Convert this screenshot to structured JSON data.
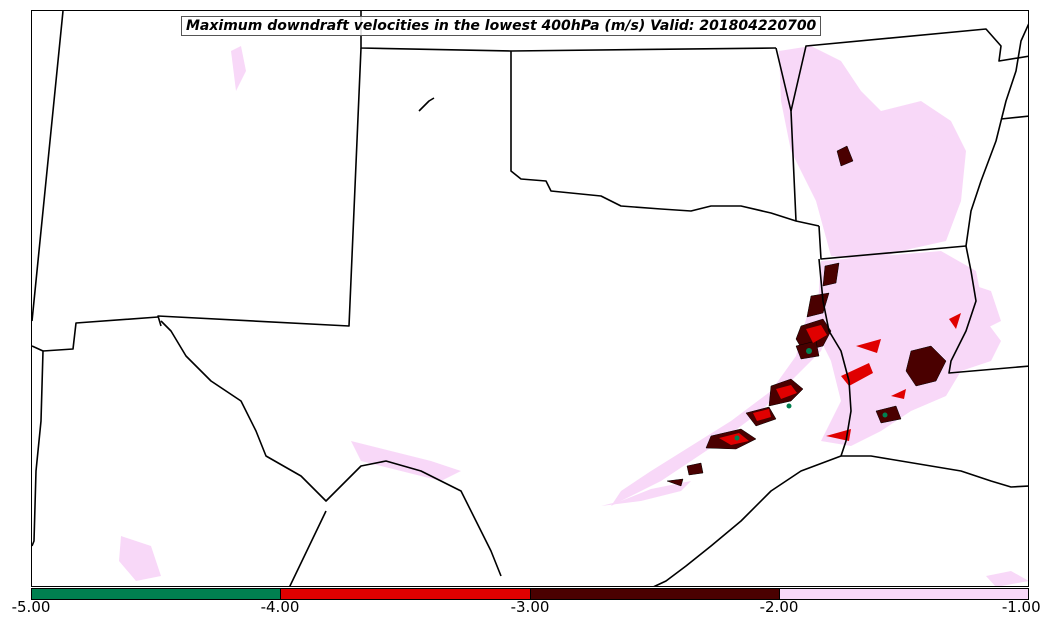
{
  "title": "Maximum downdraft velocities in the lowest 400hPa (m/s) Valid: 201804220700",
  "colorbar": {
    "ticks": [
      "-5.00",
      "-4.00",
      "-3.00",
      "-2.00",
      "-1.00"
    ],
    "segments": [
      {
        "range": [
          -5,
          -4
        ],
        "color": "#008050"
      },
      {
        "range": [
          -4,
          -3
        ],
        "color": "#e00000"
      },
      {
        "range": [
          -3,
          -2
        ],
        "color": "#4a0000"
      },
      {
        "range": [
          -2,
          -1
        ],
        "color": "#f8d8f8"
      }
    ]
  },
  "colors": {
    "state_lines": "#000000",
    "light_pink": "#f8d8f8",
    "dark_red": "#4a0000",
    "red": "#e00000",
    "green": "#008050"
  }
}
